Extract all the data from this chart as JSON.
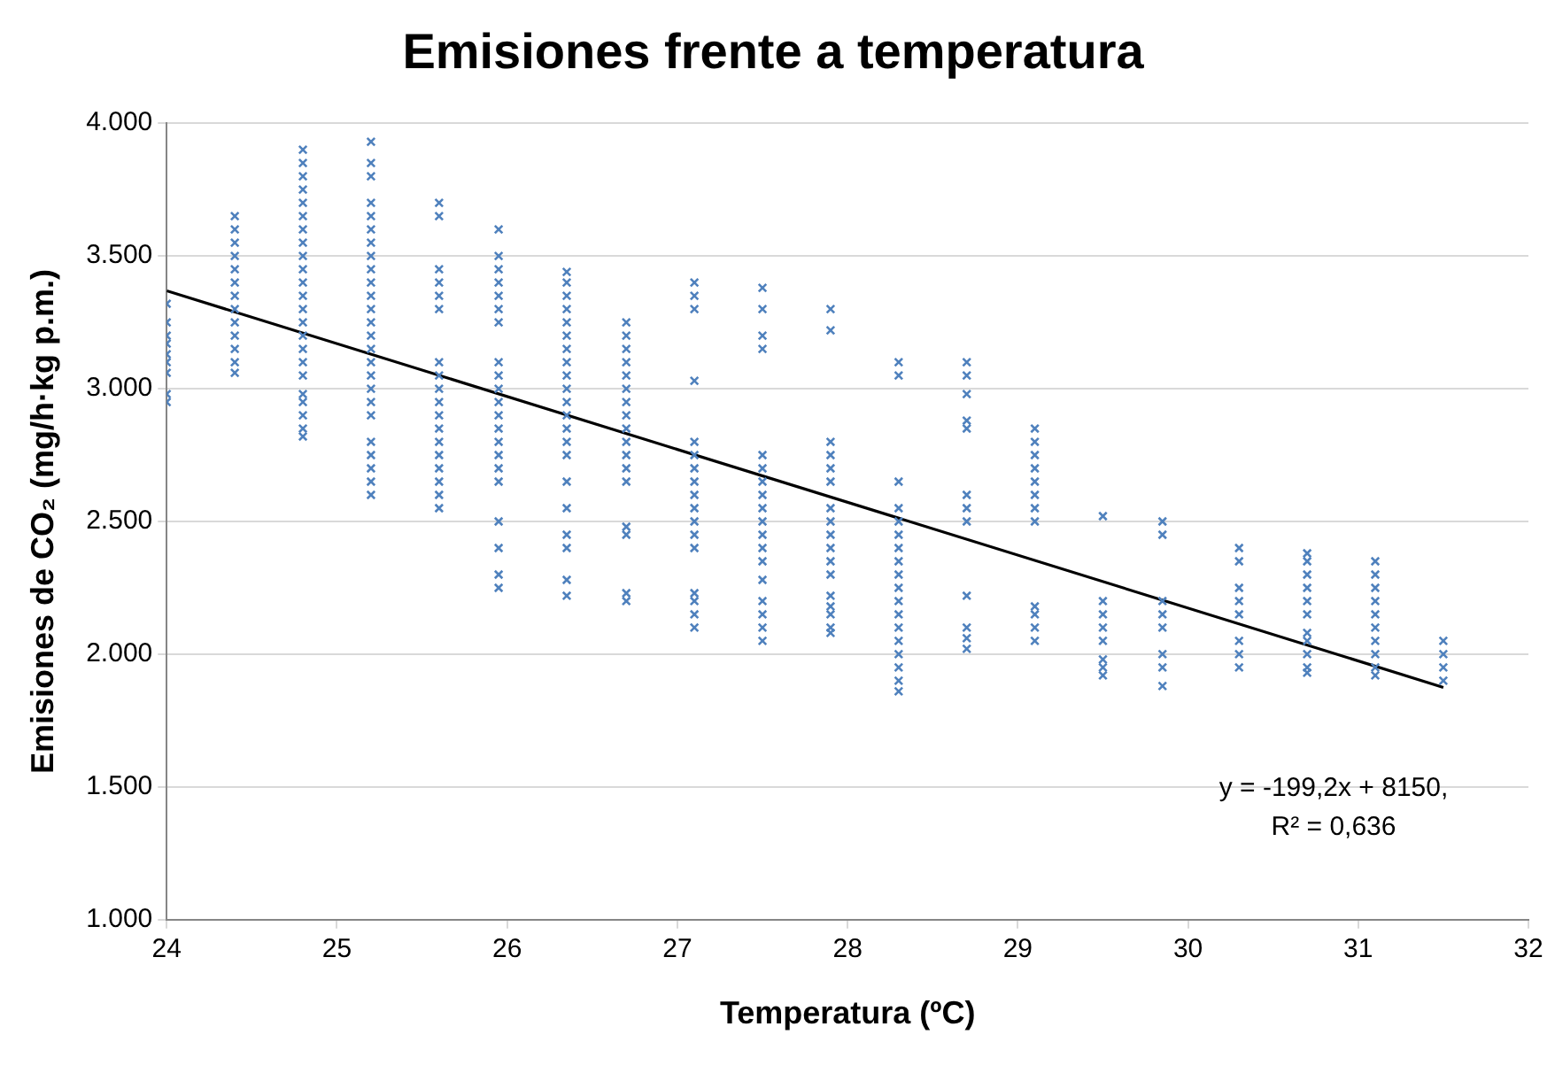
{
  "chart_data": {
    "type": "scatter",
    "title": "Emisiones frente a temperatura",
    "xlabel": "Temperatura (ºC)",
    "ylabel": "Emisiones de CO₂ (mg/h·kg p.m.)",
    "xlim": [
      24,
      32
    ],
    "xticks": [
      24,
      25,
      26,
      27,
      28,
      29,
      30,
      31,
      32
    ],
    "ylim": [
      1000,
      4000
    ],
    "yticks": [
      {
        "value": 1000,
        "label": "1.000"
      },
      {
        "value": 1500,
        "label": "1.500"
      },
      {
        "value": 2000,
        "label": "2.000"
      },
      {
        "value": 2500,
        "label": "2.500"
      },
      {
        "value": 3000,
        "label": "3.000"
      },
      {
        "value": 3500,
        "label": "3.500"
      },
      {
        "value": 4000,
        "label": "4.000"
      }
    ],
    "grid": "y",
    "legend": false,
    "marker": "cross",
    "annotations": [
      "y = -199,2x + 8150,",
      "R² = 0,636"
    ],
    "series": [
      {
        "color": "#4f81bd",
        "x": [
          24,
          24,
          24,
          24,
          24,
          24,
          24,
          24,
          24,
          24.4,
          24.4,
          24.4,
          24.4,
          24.4,
          24.4,
          24.4,
          24.4,
          24.4,
          24.4,
          24.4,
          24.4,
          24.4,
          24.8,
          24.8,
          24.8,
          24.8,
          24.8,
          24.8,
          24.8,
          24.8,
          24.8,
          24.8,
          24.8,
          24.8,
          24.8,
          24.8,
          24.8,
          24.8,
          24.8,
          24.8,
          24.8,
          24.8,
          24.8,
          24.8,
          24.8,
          25.2,
          25.2,
          25.2,
          25.2,
          25.2,
          25.2,
          25.2,
          25.2,
          25.2,
          25.2,
          25.2,
          25.2,
          25.2,
          25.2,
          25.2,
          25.2,
          25.2,
          25.2,
          25.2,
          25.2,
          25.2,
          25.2,
          25.2,
          25.2,
          25.2,
          25.6,
          25.6,
          25.6,
          25.6,
          25.6,
          25.6,
          25.6,
          25.6,
          25.6,
          25.6,
          25.6,
          25.6,
          25.6,
          25.6,
          25.6,
          25.6,
          25.6,
          25.6,
          25.95,
          25.95,
          25.95,
          25.95,
          25.95,
          25.95,
          25.95,
          25.95,
          25.95,
          25.95,
          25.95,
          25.95,
          25.95,
          25.95,
          25.95,
          25.95,
          25.95,
          25.95,
          25.95,
          25.95,
          25.95,
          26.35,
          26.35,
          26.35,
          26.35,
          26.35,
          26.35,
          26.35,
          26.35,
          26.35,
          26.35,
          26.35,
          26.35,
          26.35,
          26.35,
          26.35,
          26.35,
          26.35,
          26.35,
          26.35,
          26.35,
          26.35,
          26.7,
          26.7,
          26.7,
          26.7,
          26.7,
          26.7,
          26.7,
          26.7,
          26.7,
          26.7,
          26.7,
          26.7,
          26.7,
          26.7,
          26.7,
          26.7,
          26.7,
          27.1,
          27.1,
          27.1,
          27.1,
          27.1,
          27.1,
          27.1,
          27.1,
          27.1,
          27.1,
          27.1,
          27.1,
          27.1,
          27.1,
          27.1,
          27.1,
          27.1,
          27.5,
          27.5,
          27.5,
          27.5,
          27.5,
          27.5,
          27.5,
          27.5,
          27.5,
          27.5,
          27.5,
          27.5,
          27.5,
          27.5,
          27.5,
          27.5,
          27.5,
          27.5,
          27.9,
          27.9,
          27.9,
          27.9,
          27.9,
          27.9,
          27.9,
          27.9,
          27.9,
          27.9,
          27.9,
          27.9,
          27.9,
          27.9,
          27.9,
          27.9,
          27.9,
          28.3,
          28.3,
          28.3,
          28.3,
          28.3,
          28.3,
          28.3,
          28.3,
          28.3,
          28.3,
          28.3,
          28.3,
          28.3,
          28.3,
          28.3,
          28.3,
          28.3,
          28.3,
          28.7,
          28.7,
          28.7,
          28.7,
          28.7,
          28.7,
          28.7,
          28.7,
          28.7,
          28.7,
          28.7,
          28.7,
          29.1,
          29.1,
          29.1,
          29.1,
          29.1,
          29.1,
          29.1,
          29.1,
          29.1,
          29.1,
          29.1,
          29.1,
          29.5,
          29.5,
          29.5,
          29.5,
          29.5,
          29.5,
          29.5,
          29.5,
          29.85,
          29.85,
          29.85,
          29.85,
          29.85,
          29.85,
          29.85,
          29.85,
          30.3,
          30.3,
          30.3,
          30.3,
          30.3,
          30.3,
          30.3,
          30.3,
          30.7,
          30.7,
          30.7,
          30.7,
          30.7,
          30.7,
          30.7,
          30.7,
          30.7,
          30.7,
          30.7,
          31.1,
          31.1,
          31.1,
          31.1,
          31.1,
          31.1,
          31.1,
          31.1,
          31.1,
          31.1,
          31.5,
          31.5,
          31.5,
          31.5
        ],
        "values": [
          3320,
          3250,
          3200,
          3170,
          3130,
          3100,
          3060,
          2980,
          2950,
          3650,
          3600,
          3550,
          3500,
          3450,
          3400,
          3350,
          3300,
          3250,
          3200,
          3150,
          3100,
          3060,
          3900,
          3850,
          3800,
          3750,
          3700,
          3650,
          3600,
          3550,
          3500,
          3450,
          3400,
          3350,
          3300,
          3250,
          3200,
          3150,
          3100,
          3050,
          2980,
          2950,
          2900,
          2850,
          2820,
          3930,
          3850,
          3800,
          3700,
          3650,
          3600,
          3550,
          3500,
          3450,
          3400,
          3350,
          3300,
          3250,
          3200,
          3150,
          3100,
          3050,
          3000,
          2950,
          2900,
          2800,
          2750,
          2700,
          2650,
          2600,
          3700,
          3650,
          3450,
          3400,
          3350,
          3300,
          3100,
          3050,
          3000,
          2950,
          2900,
          2850,
          2800,
          2750,
          2700,
          2650,
          2600,
          2550,
          3600,
          3500,
          3450,
          3400,
          3350,
          3300,
          3250,
          3100,
          3050,
          3000,
          2950,
          2900,
          2850,
          2800,
          2750,
          2700,
          2650,
          2500,
          2400,
          2300,
          2250,
          3440,
          3400,
          3350,
          3300,
          3250,
          3200,
          3150,
          3100,
          3050,
          3000,
          2950,
          2900,
          2850,
          2800,
          2750,
          2650,
          2550,
          2450,
          2400,
          2280,
          2220,
          3250,
          3200,
          3150,
          3100,
          3050,
          3000,
          2950,
          2900,
          2850,
          2800,
          2750,
          2700,
          2650,
          2480,
          2450,
          2230,
          2200,
          3400,
          3350,
          3300,
          3030,
          2800,
          2750,
          2700,
          2650,
          2600,
          2550,
          2500,
          2450,
          2400,
          2230,
          2200,
          2150,
          2100,
          3380,
          3300,
          3200,
          3150,
          2750,
          2700,
          2650,
          2600,
          2550,
          2500,
          2450,
          2400,
          2350,
          2280,
          2200,
          2150,
          2100,
          2050,
          3300,
          3220,
          2800,
          2750,
          2700,
          2650,
          2550,
          2500,
          2450,
          2400,
          2350,
          2300,
          2220,
          2180,
          2150,
          2100,
          2080,
          3100,
          3050,
          2650,
          2550,
          2500,
          2450,
          2400,
          2350,
          2300,
          2250,
          2200,
          2150,
          2100,
          2050,
          2000,
          1950,
          1900,
          1860,
          3100,
          3050,
          2980,
          2880,
          2850,
          2600,
          2550,
          2500,
          2220,
          2100,
          2060,
          2020,
          2850,
          2800,
          2750,
          2700,
          2650,
          2600,
          2550,
          2500,
          2180,
          2150,
          2100,
          2050,
          2520,
          2200,
          2150,
          2100,
          2050,
          1980,
          1950,
          1920,
          2500,
          2450,
          2200,
          2150,
          2100,
          2000,
          1950,
          1880,
          2400,
          2350,
          2250,
          2200,
          2150,
          2050,
          2000,
          1950,
          2380,
          2350,
          2300,
          2250,
          2200,
          2150,
          2080,
          2050,
          2000,
          1950,
          1930,
          2350,
          2300,
          2250,
          2200,
          2150,
          2100,
          2050,
          2000,
          1950,
          1920,
          2050,
          2000,
          1950,
          1900
        ]
      },
      {
        "type": "line",
        "color": "#000000",
        "marker": "none",
        "x": [
          24,
          31.5
        ],
        "values": [
          3369,
          1875
        ]
      }
    ]
  }
}
